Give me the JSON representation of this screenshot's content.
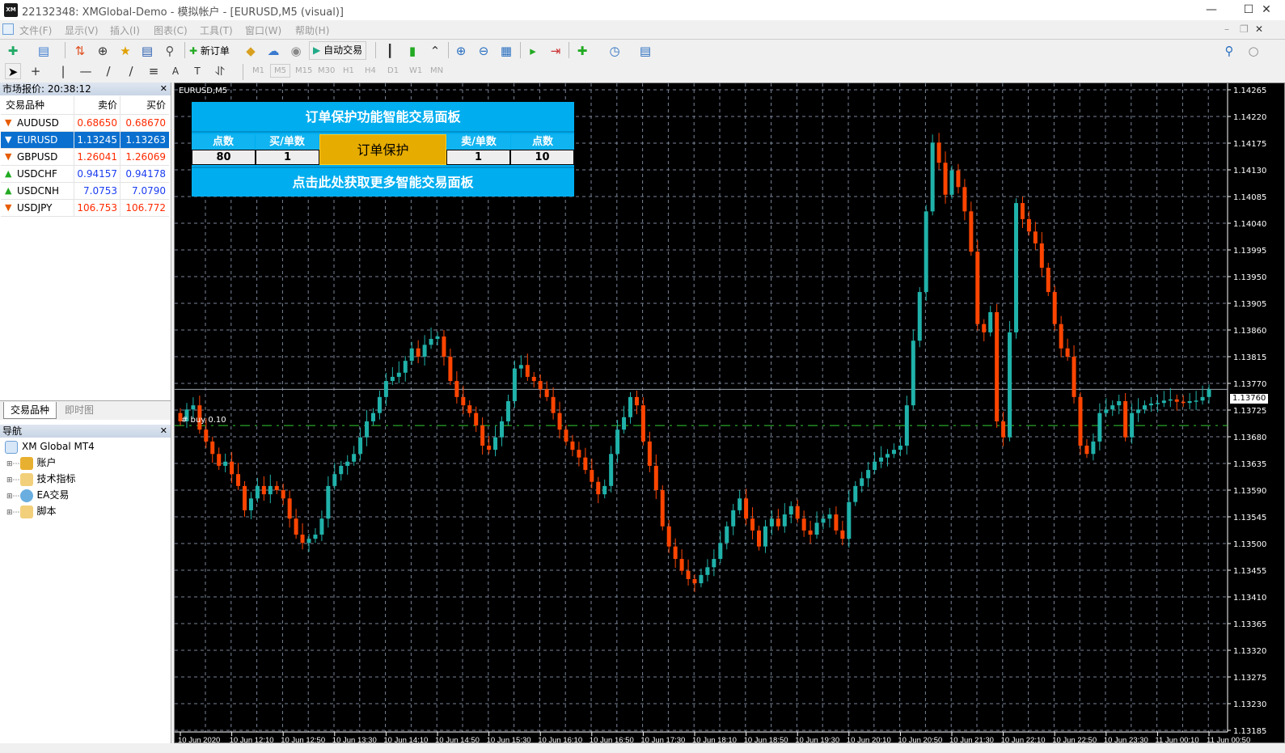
{
  "window": {
    "title": "22132348: XMGlobal-Demo - 模拟帐户 - [EURUSD,M5 (visual)]",
    "logo": "XM"
  },
  "menu": [
    "文件(F)",
    "显示(V)",
    "插入(I)",
    "图表(C)",
    "工具(T)",
    "窗口(W)",
    "帮助(H)"
  ],
  "toolbar": {
    "new_order": "新订单",
    "auto_trading": "自动交易",
    "timeframes": [
      "M1",
      "M5",
      "M15",
      "M30",
      "H1",
      "H4",
      "D1",
      "W1",
      "MN"
    ],
    "active_timeframe": "M5"
  },
  "market_watch": {
    "title": "市场报价: 20:38:12",
    "headers": {
      "symbol": "交易品种",
      "bid": "卖价",
      "ask": "买价"
    },
    "rows": [
      {
        "symbol": "AUDUSD",
        "bid": "0.68650",
        "ask": "0.68670",
        "dir": "down"
      },
      {
        "symbol": "EURUSD",
        "bid": "1.13245",
        "ask": "1.13263",
        "dir": "down",
        "selected": true
      },
      {
        "symbol": "GBPUSD",
        "bid": "1.26041",
        "ask": "1.26069",
        "dir": "down"
      },
      {
        "symbol": "USDCHF",
        "bid": "0.94157",
        "ask": "0.94178",
        "dir": "up"
      },
      {
        "symbol": "USDCNH",
        "bid": "7.0753",
        "ask": "7.0790",
        "dir": "up"
      },
      {
        "symbol": "USDJPY",
        "bid": "106.753",
        "ask": "106.772",
        "dir": "down"
      }
    ],
    "tabs": [
      "交易品种",
      "即时图"
    ]
  },
  "navigator": {
    "title": "导航",
    "root": "XM Global MT4",
    "items": [
      "账户",
      "技术指标",
      "EA交易",
      "脚本"
    ]
  },
  "chart": {
    "label": "EURUSD,M5",
    "trade_label": "#  buy 0.10",
    "colors": {
      "bull": "#20b2aa",
      "bear": "#ff4500",
      "grid": "#7a8599",
      "buy_line": "#32cd32"
    },
    "current_price": "1.13760",
    "current_price_value": 1.1376,
    "buy_price_value": 1.13699,
    "price_ticks": [
      "1.14265",
      "1.14220",
      "1.14175",
      "1.14130",
      "1.14085",
      "1.14040",
      "1.13995",
      "1.13950",
      "1.13905",
      "1.13860",
      "1.13815",
      "1.13770",
      "1.13725",
      "1.13680",
      "1.13635",
      "1.13590",
      "1.13545",
      "1.13500",
      "1.13455",
      "1.13410",
      "1.13365",
      "1.13320",
      "1.13275",
      "1.13230",
      "1.13185"
    ],
    "time_ticks": [
      "10 Jun 2020",
      "10 Jun 12:10",
      "10 Jun 12:50",
      "10 Jun 13:30",
      "10 Jun 14:10",
      "10 Jun 14:50",
      "10 Jun 15:30",
      "10 Jun 16:10",
      "10 Jun 16:50",
      "10 Jun 17:30",
      "10 Jun 18:10",
      "10 Jun 18:50",
      "10 Jun 19:30",
      "10 Jun 20:10",
      "10 Jun 20:50",
      "10 Jun 21:30",
      "10 Jun 22:10",
      "10 Jun 22:50",
      "10 Jun 23:30",
      "11 Jun 00:10",
      "11 Jun 00:50"
    ],
    "first_open": 1.1372,
    "closes": [
      1.13706,
      1.13726,
      1.13733,
      1.13692,
      1.13672,
      1.13651,
      1.13631,
      1.13638,
      1.13617,
      1.13597,
      1.13556,
      1.13576,
      1.13597,
      1.13583,
      1.13597,
      1.1359,
      1.13576,
      1.13542,
      1.13515,
      1.13501,
      1.13508,
      1.13515,
      1.13542,
      1.13597,
      1.13617,
      1.13631,
      1.13638,
      1.13651,
      1.13679,
      1.13706,
      1.1372,
      1.13747,
      1.13774,
      1.13781,
      1.13788,
      1.13808,
      1.13829,
      1.13815,
      1.13835,
      1.13845,
      1.13849,
      1.13815,
      1.13774,
      1.13747,
      1.13733,
      1.1372,
      1.13699,
      1.13665,
      1.13658,
      1.13679,
      1.13706,
      1.1374,
      1.13795,
      1.13801,
      1.13781,
      1.13774,
      1.1376,
      1.13747,
      1.1372,
      1.13692,
      1.13672,
      1.13658,
      1.13645,
      1.13624,
      1.13604,
      1.13583,
      1.13597,
      1.13651,
      1.13692,
      1.13713,
      1.13747,
      1.13733,
      1.13672,
      1.13631,
      1.1359,
      1.13529,
      1.13495,
      1.13474,
      1.13454,
      1.1344,
      1.13433,
      1.13447,
      1.1346,
      1.13474,
      1.13501,
      1.13529,
      1.13556,
      1.13576,
      1.13542,
      1.13522,
      1.13495,
      1.13529,
      1.13542,
      1.13529,
      1.13549,
      1.13563,
      1.13542,
      1.13522,
      1.13515,
      1.13535,
      1.13542,
      1.13549,
      1.13522,
      1.13508,
      1.1357,
      1.13597,
      1.1361,
      1.13624,
      1.13638,
      1.13645,
      1.13651,
      1.13658,
      1.13665,
      1.13733,
      1.13842,
      1.13924,
      1.1406,
      1.14176,
      1.14142,
      1.14088,
      1.14129,
      1.14101,
      1.1406,
      1.13992,
      1.1387,
      1.13856,
      1.1389,
      1.13706,
      1.13679,
      1.13856,
      1.14074,
      1.14047,
      1.14026,
      1.14006,
      1.13965,
      1.13924,
      1.1387,
      1.13829,
      1.13815,
      1.13747,
      1.13665,
      1.13651,
      1.13672,
      1.1372,
      1.13726,
      1.13733,
      1.1374,
      1.13679,
      1.1372,
      1.13726,
      1.13733,
      1.13736,
      1.13737,
      1.13741,
      1.13743,
      1.13739,
      1.13737,
      1.1374,
      1.13741,
      1.13747,
      1.1376
    ]
  },
  "ea_panel": {
    "title": "订单保护功能智能交易面板",
    "col1_label": "点数",
    "col1_value": "80",
    "col2_label": "买/单数",
    "col2_value": "1",
    "center_button": "订单保护",
    "col4_label": "卖/单数",
    "col4_value": "1",
    "col5_label": "点数",
    "col5_value": "10",
    "footer": "点击此处获取更多智能交易面板"
  }
}
